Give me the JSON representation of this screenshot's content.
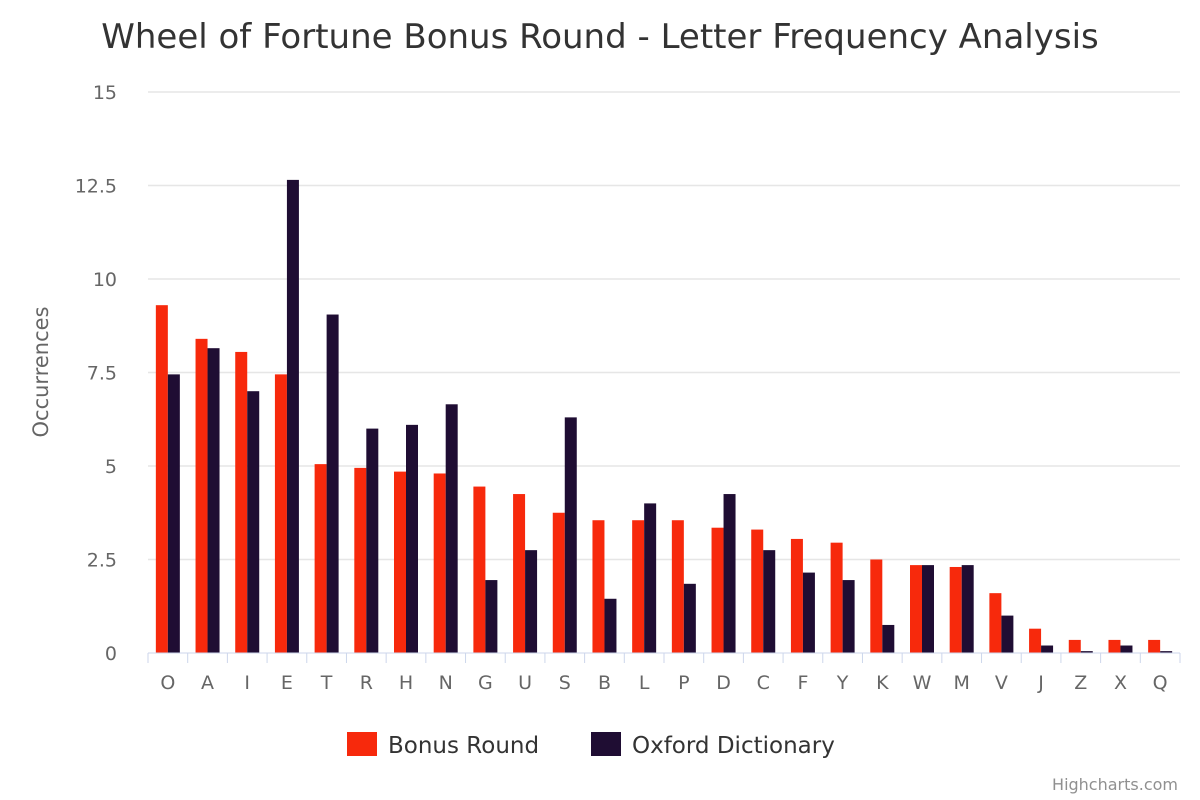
{
  "chart_data": {
    "type": "bar",
    "title": "Wheel of Fortune Bonus Round - Letter Frequency Analysis",
    "ylabel": "Occurrences",
    "xlabel": "",
    "ylim": [
      0,
      15
    ],
    "yticks": [
      "0",
      "2.5",
      "5",
      "7.5",
      "10",
      "12.5",
      "15"
    ],
    "ytick_values": [
      0,
      2.5,
      5,
      7.5,
      10,
      12.5,
      15
    ],
    "categories": [
      "O",
      "A",
      "I",
      "E",
      "T",
      "R",
      "H",
      "N",
      "G",
      "U",
      "S",
      "B",
      "L",
      "P",
      "D",
      "C",
      "F",
      "Y",
      "K",
      "W",
      "M",
      "V",
      "J",
      "Z",
      "X",
      "Q"
    ],
    "series": [
      {
        "name": "Bonus Round",
        "color": "#f7290c",
        "values": [
          9.3,
          8.4,
          8.05,
          7.45,
          5.05,
          4.95,
          4.85,
          4.8,
          4.45,
          4.25,
          3.75,
          3.55,
          3.55,
          3.55,
          3.35,
          3.3,
          3.05,
          2.95,
          2.5,
          2.35,
          2.3,
          1.6,
          0.65,
          0.35,
          0.35,
          0.35
        ]
      },
      {
        "name": "Oxford Dictionary",
        "color": "#1f0d33",
        "values": [
          7.45,
          8.15,
          7.0,
          12.65,
          9.05,
          6.0,
          6.1,
          6.65,
          1.95,
          2.75,
          6.3,
          1.45,
          4.0,
          1.85,
          4.25,
          2.75,
          2.15,
          1.95,
          0.75,
          2.35,
          2.35,
          1.0,
          0.2,
          0.05,
          0.2,
          0.05
        ]
      }
    ],
    "legend": "bottom-center",
    "grid": true,
    "credits": "Highcharts.com"
  }
}
